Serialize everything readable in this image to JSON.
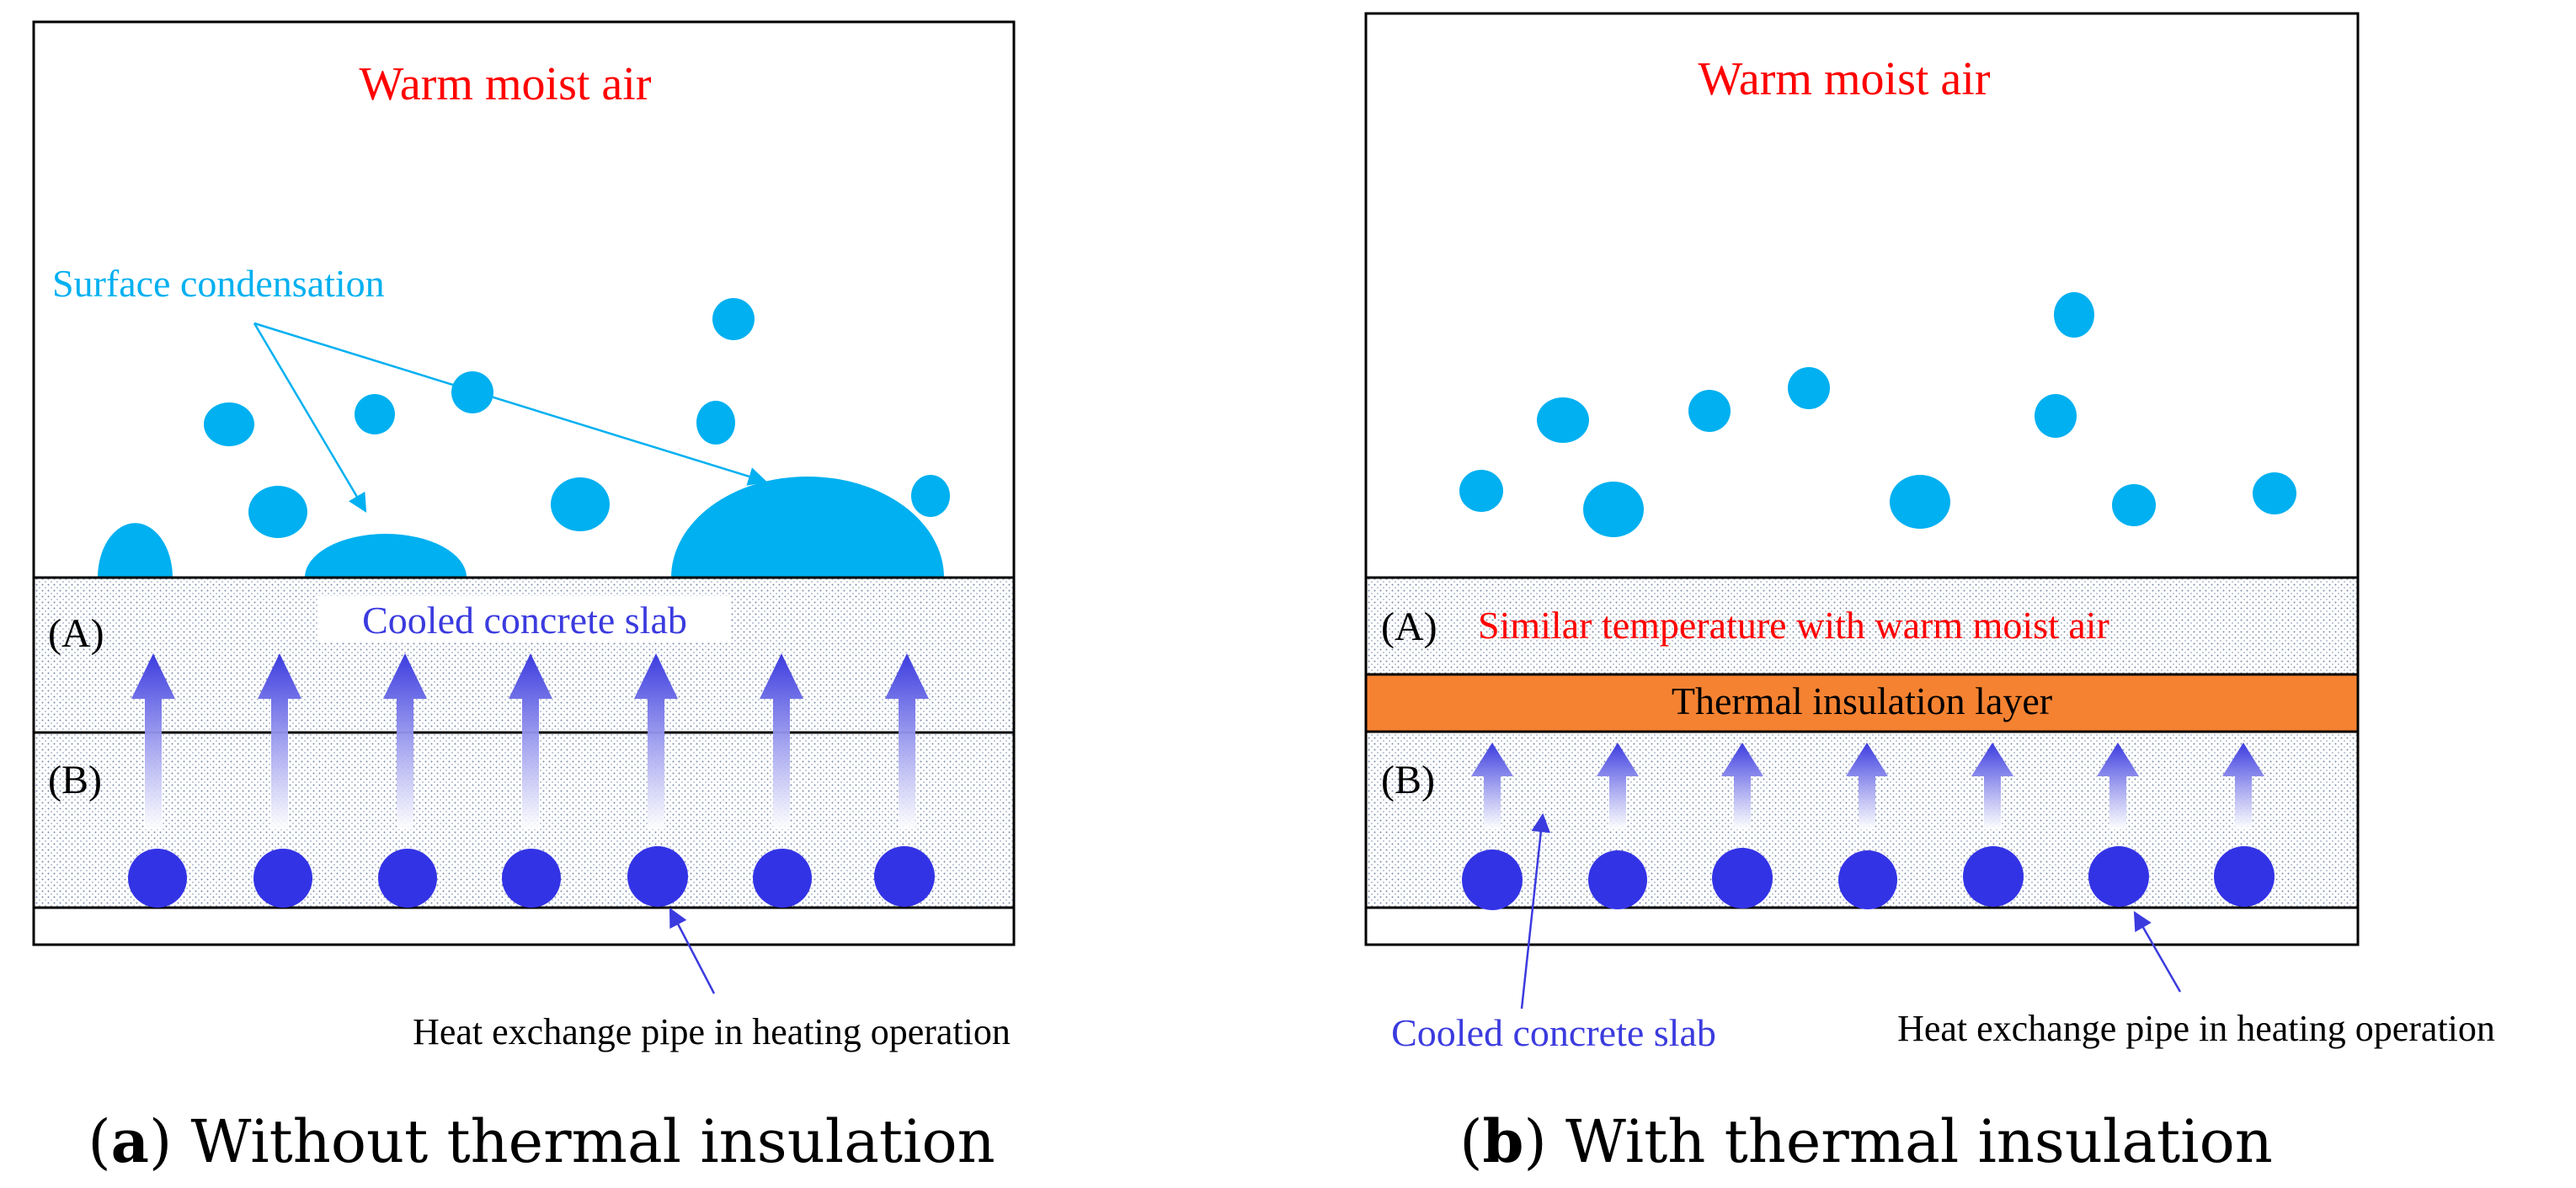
{
  "panel_a": {
    "warm_air": "Warm moist air",
    "surface_condensation": "Surface condensation",
    "layer_a": "(A)",
    "layer_b": "(B)",
    "slab_label": "Cooled concrete slab",
    "pipe_label": "Heat exchange pipe in heating operation",
    "caption_letter": "a",
    "caption_text": " Without thermal insulation"
  },
  "panel_b": {
    "warm_air": "Warm moist air",
    "layer_a": "(A)",
    "layer_a_desc": "Similar temperature with warm moist air",
    "insulation_label": "Thermal insulation layer",
    "layer_b": "(B)",
    "slab_label": "Cooled concrete slab",
    "pipe_label": "Heat exchange pipe in heating operation",
    "caption_letter": "b",
    "caption_text": " With thermal insulation"
  },
  "colors": {
    "warm_text": "#ff0000",
    "droplet": "#00b0f0",
    "pipe": "#3333e6",
    "slab_label": "#3b3bdf",
    "insulation": "#f58231",
    "outline": "#000000"
  }
}
